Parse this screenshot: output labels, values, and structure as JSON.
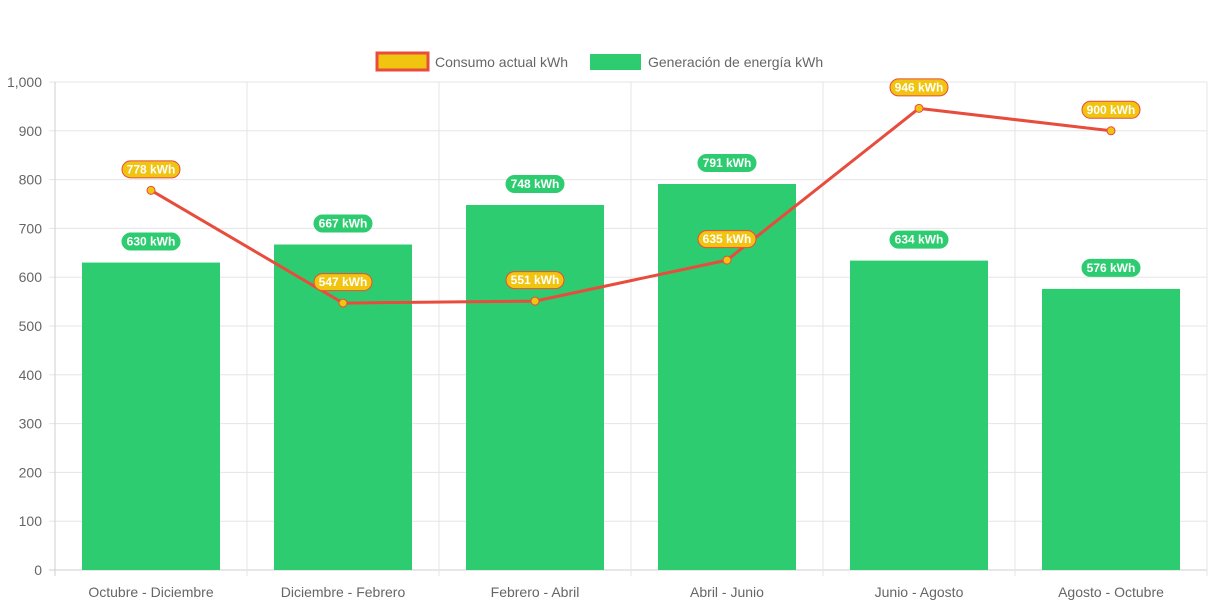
{
  "chart_data": {
    "type": "bar",
    "title": "",
    "categories": [
      "Octubre - Diciembre",
      "Diciembre - Febrero",
      "Febrero - Abril",
      "Abril - Junio",
      "Junio - Agosto",
      "Agosto - Octubre"
    ],
    "series": [
      {
        "name": "Consumo actual kWh",
        "type": "line",
        "values": [
          778,
          547,
          551,
          635,
          946,
          900
        ],
        "labels": [
          "778 kWh",
          "547 kWh",
          "551 kWh",
          "635 kWh",
          "946 kWh",
          "900 kWh"
        ],
        "color": "#e74c3c",
        "fill": "#f1c40f"
      },
      {
        "name": "Generación de energía kWh",
        "type": "bar",
        "values": [
          630,
          667,
          748,
          791,
          634,
          576
        ],
        "labels": [
          "630 kWh",
          "667 kWh",
          "748 kWh",
          "791 kWh",
          "634 kWh",
          "576 kWh"
        ],
        "color": "#2ecc71"
      }
    ],
    "y_ticks": [
      "0",
      "100",
      "200",
      "300",
      "400",
      "500",
      "600",
      "700",
      "800",
      "900",
      "1,000"
    ],
    "ylim": [
      0,
      1000
    ],
    "xlabel": "",
    "ylabel": "",
    "grid": true,
    "legend_position": "top-center"
  }
}
